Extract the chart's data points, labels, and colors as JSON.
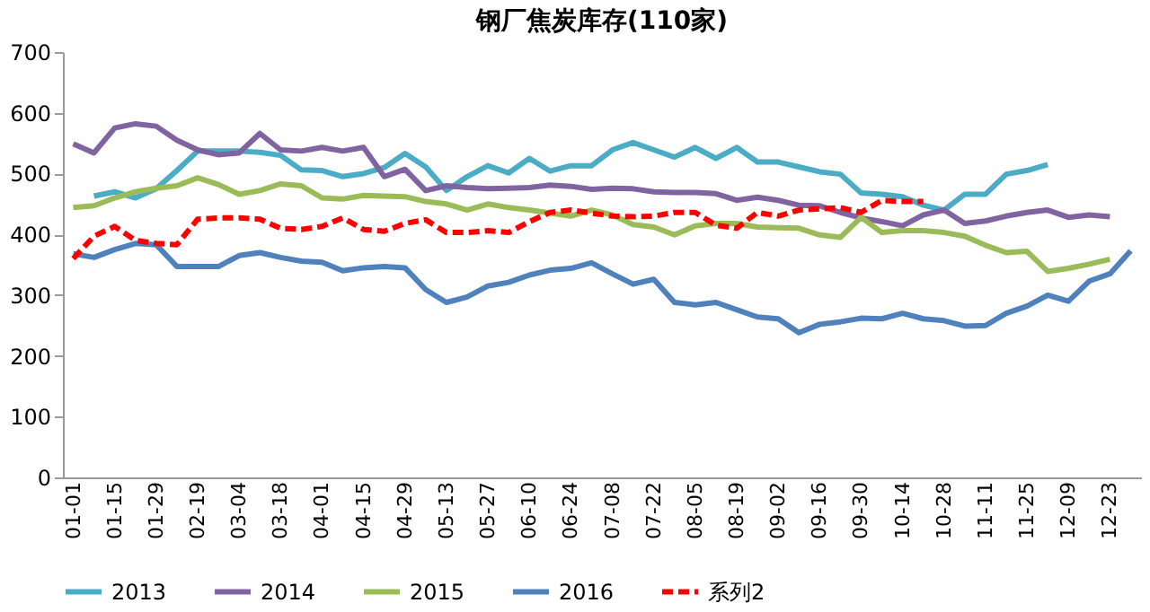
{
  "chart_data": {
    "type": "line",
    "title": "钢厂焦炭库存(110家)",
    "categories": [
      "01-01",
      null,
      "01-15",
      null,
      "01-29",
      null,
      "02-19",
      null,
      "03-04",
      null,
      "03-18",
      null,
      "04-01",
      null,
      "04-15",
      null,
      "04-29",
      null,
      "05-13",
      null,
      "05-27",
      null,
      "06-10",
      null,
      "06-24",
      null,
      "07-08",
      null,
      "07-22",
      null,
      "08-05",
      null,
      "08-19",
      null,
      "09-02",
      null,
      "09-16",
      null,
      "09-30",
      null,
      "10-14",
      null,
      "10-28",
      null,
      "11-11",
      null,
      "11-25",
      null,
      "12-09",
      null,
      "12-23",
      null
    ],
    "series": [
      {
        "name": "2013",
        "color": "#4bacc6",
        "values": [
          null,
          463,
          470,
          460,
          475,
          505,
          537,
          537,
          537,
          535,
          530,
          506,
          505,
          495,
          500,
          510,
          533,
          511,
          472,
          495,
          513,
          501,
          525,
          504,
          513,
          513,
          539,
          551,
          539,
          527,
          543,
          525,
          543,
          519,
          519,
          511,
          503,
          499,
          468,
          466,
          462,
          448,
          440,
          466,
          466,
          499,
          505,
          515,
          null,
          null,
          null,
          null
        ]
      },
      {
        "name": "2014",
        "color": "#8064a2",
        "values": [
          549,
          534,
          575,
          582,
          578,
          555,
          539,
          531,
          534,
          566,
          539,
          537,
          543,
          537,
          543,
          495,
          507,
          472,
          480,
          477,
          475,
          476,
          477,
          481,
          479,
          474,
          476,
          475,
          470,
          469,
          469,
          467,
          456,
          461,
          456,
          448,
          447,
          436,
          427,
          421,
          414,
          432,
          440,
          418,
          422,
          430,
          436,
          440,
          428,
          432,
          429,
          null
        ]
      },
      {
        "name": "2015",
        "color": "#9bbb59",
        "values": [
          444,
          447,
          460,
          470,
          476,
          480,
          493,
          482,
          466,
          472,
          483,
          480,
          460,
          458,
          464,
          463,
          462,
          454,
          450,
          440,
          450,
          444,
          440,
          435,
          430,
          440,
          432,
          416,
          412,
          399,
          414,
          418,
          418,
          412,
          411,
          410,
          399,
          395,
          428,
          403,
          406,
          406,
          403,
          397,
          382,
          370,
          372,
          339,
          344,
          351,
          359,
          null
        ]
      },
      {
        "name": "2016",
        "color": "#4f81bd",
        "values": [
          368,
          362,
          375,
          385,
          383,
          347,
          347,
          347,
          365,
          370,
          362,
          356,
          354,
          340,
          345,
          347,
          345,
          309,
          288,
          297,
          315,
          321,
          333,
          341,
          344,
          353,
          335,
          318,
          326,
          288,
          284,
          288,
          276,
          264,
          261,
          238,
          252,
          256,
          262,
          261,
          270,
          261,
          258,
          249,
          250,
          270,
          282,
          300,
          290,
          323,
          335,
          373
        ]
      },
      {
        "name": "系列2",
        "color": "#ff0000",
        "line_style": "dashed",
        "values": [
          360,
          397,
          413,
          390,
          385,
          383,
          425,
          427,
          427,
          425,
          410,
          408,
          413,
          427,
          408,
          405,
          418,
          424,
          403,
          403,
          406,
          403,
          421,
          436,
          440,
          435,
          430,
          429,
          430,
          436,
          436,
          415,
          410,
          436,
          430,
          440,
          442,
          444,
          436,
          456,
          454,
          454,
          null,
          null,
          null,
          null,
          null,
          null,
          null,
          null,
          null,
          null
        ]
      }
    ],
    "ylim": [
      0,
      700
    ],
    "yticks": [
      0,
      100,
      200,
      300,
      400,
      500,
      600,
      700
    ],
    "grid": false,
    "legend": "bottom",
    "line_style": "solid",
    "marker": "none"
  }
}
